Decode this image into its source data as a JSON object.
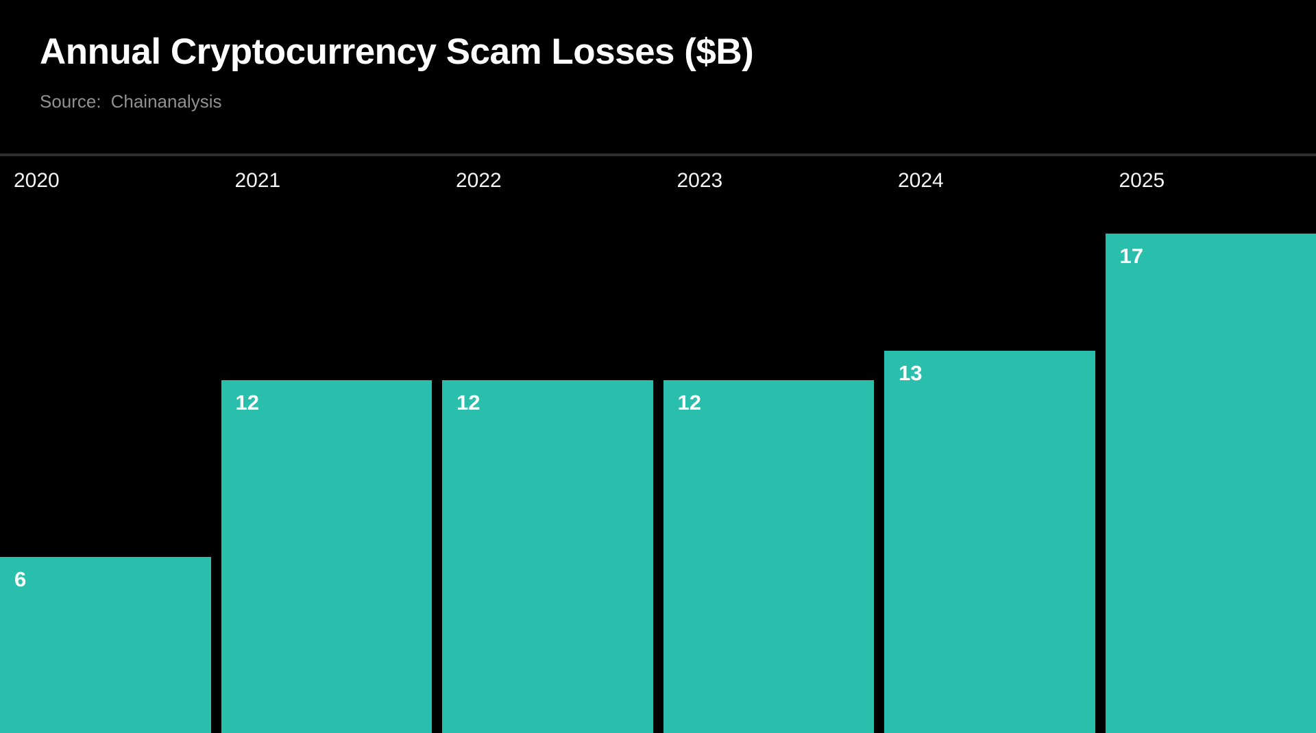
{
  "header": {
    "title": "Annual Cryptocurrency Scam Losses ($B)",
    "source_label": "Source:",
    "source_value": "Chainanalysis"
  },
  "chart_data": {
    "type": "bar",
    "title": "Annual Cryptocurrency Scam Losses ($B)",
    "source": "Chainanalysis",
    "categories": [
      "2020",
      "2021",
      "2022",
      "2023",
      "2024",
      "2025"
    ],
    "values": [
      6,
      12,
      12,
      12,
      13,
      17
    ],
    "unit": "$B",
    "xlabel": "",
    "ylabel": "",
    "ylim": [
      0,
      19.7
    ],
    "grid": false,
    "legend": false,
    "value_label_position": "inside-top-left",
    "x_axis_position": "top",
    "bars_cropped_at_bottom": true
  },
  "colors": {
    "background": "#000000",
    "bar_fill": "#2abfad",
    "divider": "#2e2e2e",
    "title_text": "#ffffff",
    "source_text": "#919191",
    "axis_label_text": "#f5f5f5",
    "value_label_text": "#ffffff"
  }
}
